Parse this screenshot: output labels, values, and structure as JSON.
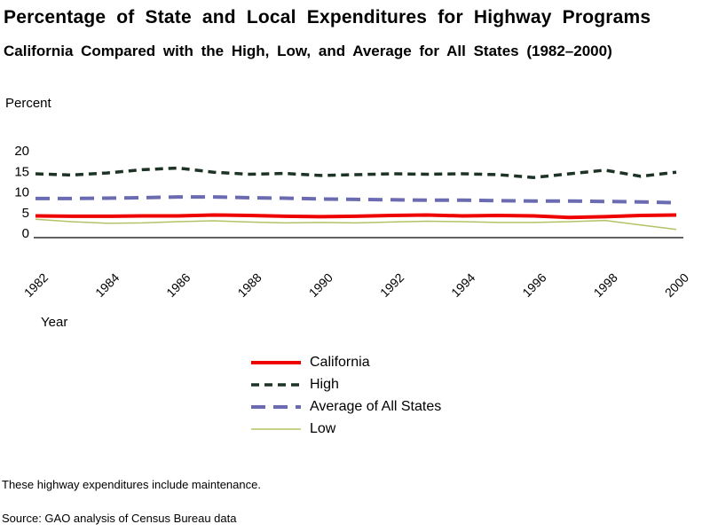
{
  "title": "Percentage of State and Local Expenditures for Highway Programs",
  "subtitle": "California Compared with the High, Low, and Average for All States (1982–2000)",
  "y_axis_label": "Percent",
  "x_axis_label": "Year",
  "note": "These highway expenditures include maintenance.",
  "source": "Source: GAO analysis of Census Bureau data",
  "colors": {
    "california": "#ee0000",
    "high": "#1c3325",
    "average": "#6b6bb2",
    "low": "#b4c266",
    "axis": "#000000"
  },
  "chart_data": {
    "type": "line",
    "title": "Percentage of State and Local Expenditures for Highway Programs",
    "xlabel": "Year",
    "ylabel": "Percent",
    "ylim": [
      0,
      20
    ],
    "yticks": [
      0,
      5,
      10,
      15,
      20
    ],
    "xticks": [
      1982,
      1984,
      1986,
      1988,
      1990,
      1992,
      1994,
      1996,
      1998,
      2000
    ],
    "grid": false,
    "legend_position": "bottom-center",
    "x": [
      1982,
      1983,
      1984,
      1985,
      1986,
      1987,
      1988,
      1989,
      1990,
      1991,
      1992,
      1993,
      1994,
      1995,
      1996,
      1997,
      1998,
      1999,
      2000
    ],
    "series": [
      {
        "name": "California",
        "color": "#ee0000",
        "style": "solid",
        "stroke_width": 4,
        "dash": "",
        "values": [
          4.2,
          4.1,
          4.1,
          4.2,
          4.2,
          4.4,
          4.3,
          4.1,
          4.0,
          4.1,
          4.3,
          4.4,
          4.2,
          4.3,
          4.2,
          3.8,
          4.0,
          4.3,
          4.4
        ]
      },
      {
        "name": "High",
        "color": "#1c3325",
        "style": "dashed",
        "stroke_width": 3.5,
        "dash": "9 6",
        "values": [
          14.4,
          14.1,
          14.6,
          15.4,
          15.8,
          14.8,
          14.3,
          14.5,
          14.0,
          14.2,
          14.4,
          14.3,
          14.4,
          14.2,
          13.5,
          14.4,
          15.3,
          13.8,
          14.8
        ]
      },
      {
        "name": "Average of All States",
        "color": "#6b6bb2",
        "style": "long-dash",
        "stroke_width": 4,
        "dash": "16 9",
        "values": [
          8.4,
          8.4,
          8.5,
          8.6,
          8.8,
          8.8,
          8.6,
          8.5,
          8.3,
          8.2,
          8.1,
          8.0,
          8.0,
          7.9,
          7.8,
          7.8,
          7.7,
          7.6,
          7.4
        ]
      },
      {
        "name": "Low",
        "color": "#b4c266",
        "style": "solid",
        "stroke_width": 1.5,
        "dash": "",
        "values": [
          3.4,
          2.8,
          2.4,
          2.5,
          2.8,
          3.0,
          2.7,
          2.5,
          2.6,
          2.5,
          2.7,
          2.9,
          2.8,
          2.6,
          2.6,
          2.8,
          3.1,
          2.0,
          0.9
        ]
      }
    ]
  }
}
